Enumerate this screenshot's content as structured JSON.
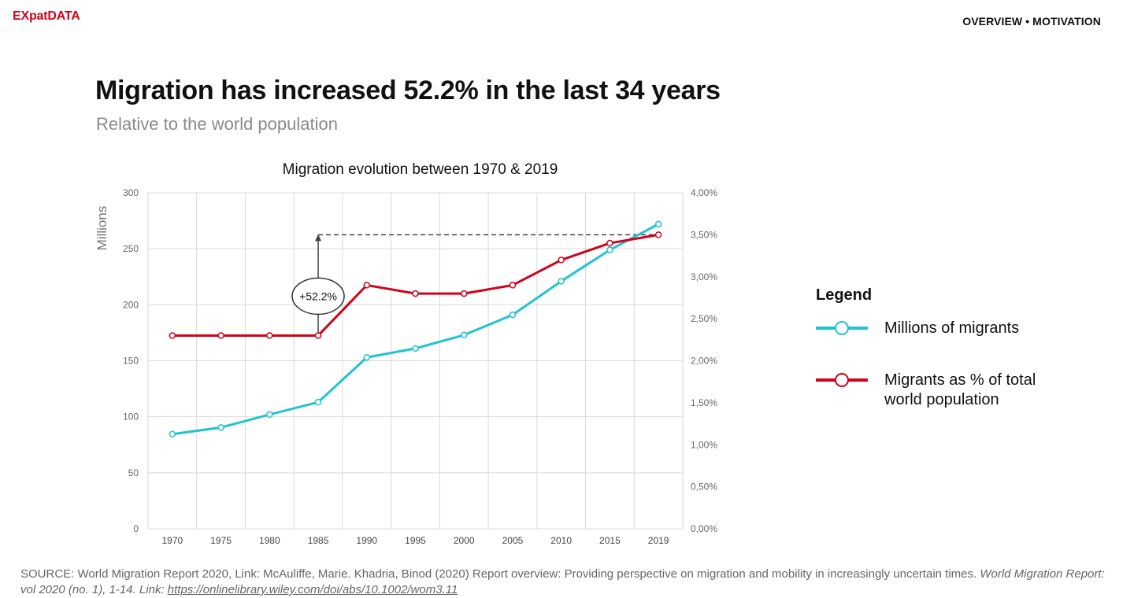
{
  "header": {
    "logo_ex": "EX",
    "logo_pat": "pat",
    "logo_data": "DATA",
    "nav": "OVERVIEW • MOTIVATION"
  },
  "headline": "Migration has increased 52.2% in the last 34 years",
  "subheadline": "Relative to the world population",
  "legend": {
    "title": "Legend",
    "items": [
      {
        "label": "Millions of migrants",
        "color": "#1fc4cf"
      },
      {
        "label": "Migrants as % of total world population",
        "color": "#d0021b"
      }
    ]
  },
  "chart_data": {
    "type": "line",
    "title": "Migration evolution between 1970 & 2019",
    "ylabel": "Millions",
    "x": [
      "1970",
      "1975",
      "1980",
      "1985",
      "1990",
      "1995",
      "2000",
      "2005",
      "2010",
      "2015",
      "2019"
    ],
    "ylim": [
      0,
      300
    ],
    "yticks": [
      "0",
      "50",
      "100",
      "150",
      "200",
      "250",
      "300"
    ],
    "y2lim": [
      0,
      4
    ],
    "y2ticks": [
      "0,00%",
      "0,50%",
      "1,00%",
      "1,50%",
      "2,00%",
      "2,50%",
      "3,00%",
      "3,50%",
      "4,00%"
    ],
    "grid": true,
    "series": [
      {
        "name": "Millions of migrants",
        "axis": "left",
        "color": "#1fc4cf",
        "values": [
          84.5,
          90.4,
          102.0,
          113.0,
          153.0,
          161.0,
          173.0,
          191.0,
          221.0,
          249.0,
          272.0
        ]
      },
      {
        "name": "Migrants as % of total world population",
        "axis": "right",
        "color": "#d0021b",
        "values": [
          2.3,
          2.3,
          2.3,
          2.3,
          2.9,
          2.8,
          2.8,
          2.9,
          3.2,
          3.4,
          3.5
        ]
      }
    ],
    "annotation": {
      "label": "+52.2%",
      "from_x": "1985",
      "from_value": 2.3,
      "to_value": 3.5,
      "to_x": "2019"
    }
  },
  "source": {
    "text": "SOURCE: World Migration Report 2020, Link: McAuliffe, Marie. Khadria, Binod (2020) Report overview: Providing perspective on migration and mobility in increasingly uncertain times. ",
    "journal": "World Migration Report: vol 2020 (no. 1), 1-14. Link: ",
    "link": "https://onlinelibrary.wiley.com/doi/abs/10.1002/wom3.11"
  }
}
